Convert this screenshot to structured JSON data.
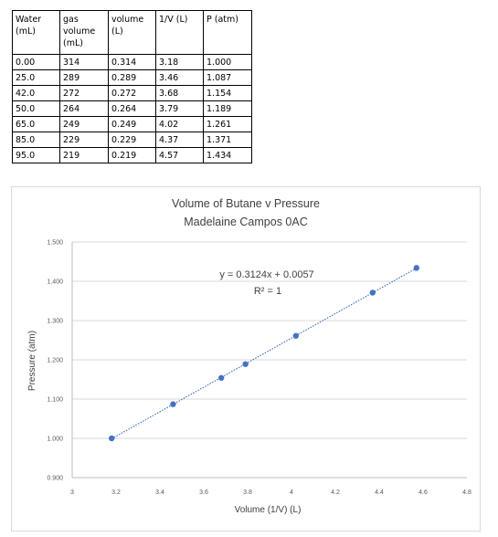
{
  "table": {
    "headers": [
      "Water (mL)",
      "gas volume (mL)",
      "volume (L)",
      "1/V (L)",
      "P (atm)"
    ],
    "rows": [
      [
        "0.00",
        "314",
        "0.314",
        "3.18",
        "1.000"
      ],
      [
        "25.0",
        "289",
        "0.289",
        "3.46",
        "1.087"
      ],
      [
        "42.0",
        "272",
        "0.272",
        "3.68",
        "1.154"
      ],
      [
        "50.0",
        "264",
        "0.264",
        "3.79",
        "1.189"
      ],
      [
        "65.0",
        "249",
        "0.249",
        "4.02",
        "1.261"
      ],
      [
        "85.0",
        "229",
        "0.229",
        "4.37",
        "1.371"
      ],
      [
        "95.0",
        "219",
        "0.219",
        "4.57",
        "1.434"
      ]
    ]
  },
  "chart_data": {
    "type": "scatter",
    "title": "Volume of Butane v Pressure",
    "subtitle": "Madelaine Campos 0AC",
    "xlabel": "Volume (1/V) (L)",
    "ylabel": "Pressure (atm)",
    "xlim": [
      3,
      4.8
    ],
    "ylim": [
      0.9,
      1.5
    ],
    "x_ticks": [
      "3",
      "3.2",
      "3.4",
      "3.6",
      "3.8",
      "4",
      "4.2",
      "4.4",
      "4.6",
      "4.8"
    ],
    "y_ticks": [
      "0.900",
      "1.000",
      "1.100",
      "1.200",
      "1.300",
      "1.400",
      "1.500"
    ],
    "grid": true,
    "legend": "none",
    "points": [
      {
        "x": 3.18,
        "y": 1.0
      },
      {
        "x": 3.46,
        "y": 1.087
      },
      {
        "x": 3.68,
        "y": 1.154
      },
      {
        "x": 3.79,
        "y": 1.189
      },
      {
        "x": 4.02,
        "y": 1.261
      },
      {
        "x": 4.37,
        "y": 1.371
      },
      {
        "x": 4.57,
        "y": 1.434
      }
    ],
    "trendline": {
      "type": "linear",
      "slope": 0.3124,
      "intercept": 0.0057,
      "equation": "y = 0.3124x + 0.0057",
      "r_squared_label": "R² = 1"
    },
    "colors": {
      "marker": "#4472c4",
      "trendline": "#4472c4",
      "grid": "#d9d9d9"
    }
  }
}
